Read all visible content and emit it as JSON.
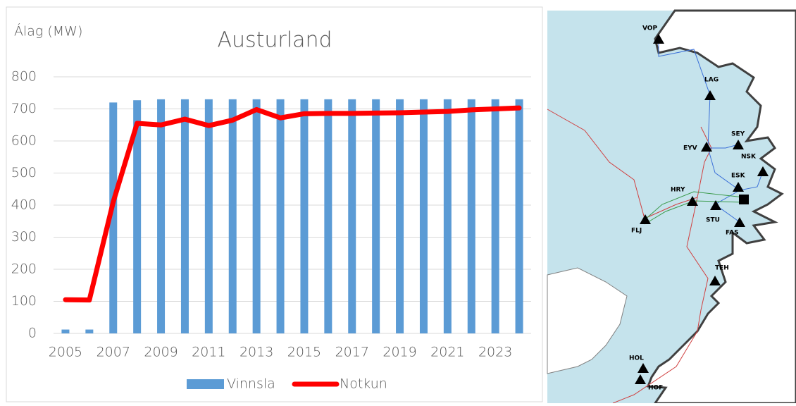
{
  "chart_data": {
    "type": "bar-line",
    "title": "Austurland",
    "y_label": "Álag (MW)",
    "categories": [
      "2005",
      null,
      "2007",
      null,
      "2009",
      null,
      "2011",
      null,
      "2013",
      null,
      "2015",
      null,
      "2017",
      null,
      "2019",
      null,
      "2021",
      null,
      "2023",
      null
    ],
    "series": [
      {
        "name": "Vinnsla",
        "type": "bar",
        "color": "#5b9bd5",
        "values": [
          12,
          12,
          720,
          727,
          730,
          730,
          730,
          730,
          730,
          730,
          730,
          730,
          730,
          730,
          730,
          730,
          730,
          730,
          730,
          730
        ]
      },
      {
        "name": "Notkun",
        "type": "line",
        "color": "#ff0000",
        "values": [
          105,
          104,
          410,
          655,
          650,
          668,
          648,
          665,
          698,
          672,
          685,
          686,
          686,
          687,
          688,
          690,
          692,
          697,
          700,
          703
        ]
      }
    ],
    "ylim": [
      0,
      800
    ],
    "yticks": [
      0,
      100,
      200,
      300,
      400,
      500,
      600,
      700,
      800
    ],
    "grid": true,
    "legend": "bottom"
  },
  "map": {
    "stations": [
      {
        "label": "VOP"
      },
      {
        "label": "LAG"
      },
      {
        "label": "SEY"
      },
      {
        "label": "EYV"
      },
      {
        "label": "NSK"
      },
      {
        "label": "ESK"
      },
      {
        "label": "HRY"
      },
      {
        "label": "STU"
      },
      {
        "label": "FLJ"
      },
      {
        "label": "FAS"
      },
      {
        "label": "TEH"
      },
      {
        "label": "HOL"
      },
      {
        "label": "HOF"
      }
    ]
  }
}
